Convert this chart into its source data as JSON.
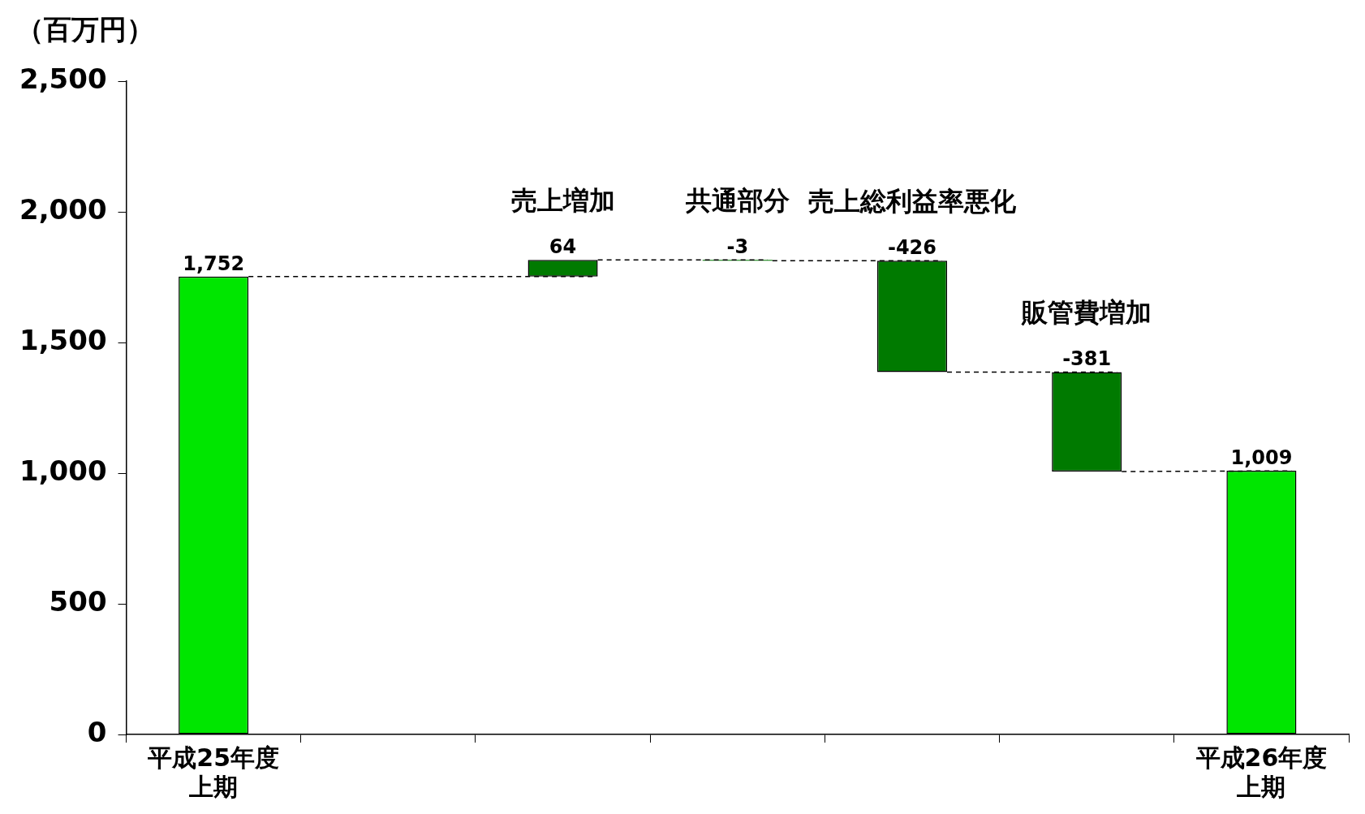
{
  "chart_data": {
    "type": "bar",
    "ylabel": "（百万円）",
    "categories": [
      "平成25年度上期",
      null,
      "売上増加",
      "共通部分",
      "売上総利益率悪化",
      "販管費増加",
      "平成26年度上期"
    ],
    "values": [
      1752,
      null,
      64,
      -3,
      -426,
      -381,
      1009
    ],
    "base": [
      0,
      null,
      1752,
      1816,
      1813,
      1387,
      0
    ],
    "colors": [
      "#00e600",
      null,
      "#007a00",
      "#007a00",
      "#007a00",
      "#007a00",
      "#00e600"
    ],
    "value_labels": [
      "1,752",
      null,
      "64",
      "-3",
      "-426",
      "-381",
      "1,009"
    ],
    "ylim": [
      0,
      2500
    ],
    "yticks": [
      0,
      500,
      {
        "value": 1000,
        "label": "1,000"
      },
      {
        "value": 1500,
        "label": "1,500"
      },
      {
        "value": 2000,
        "label": "2,000"
      },
      {
        "value": 2500,
        "label": "2,500"
      }
    ],
    "grid": false,
    "legend": false
  }
}
